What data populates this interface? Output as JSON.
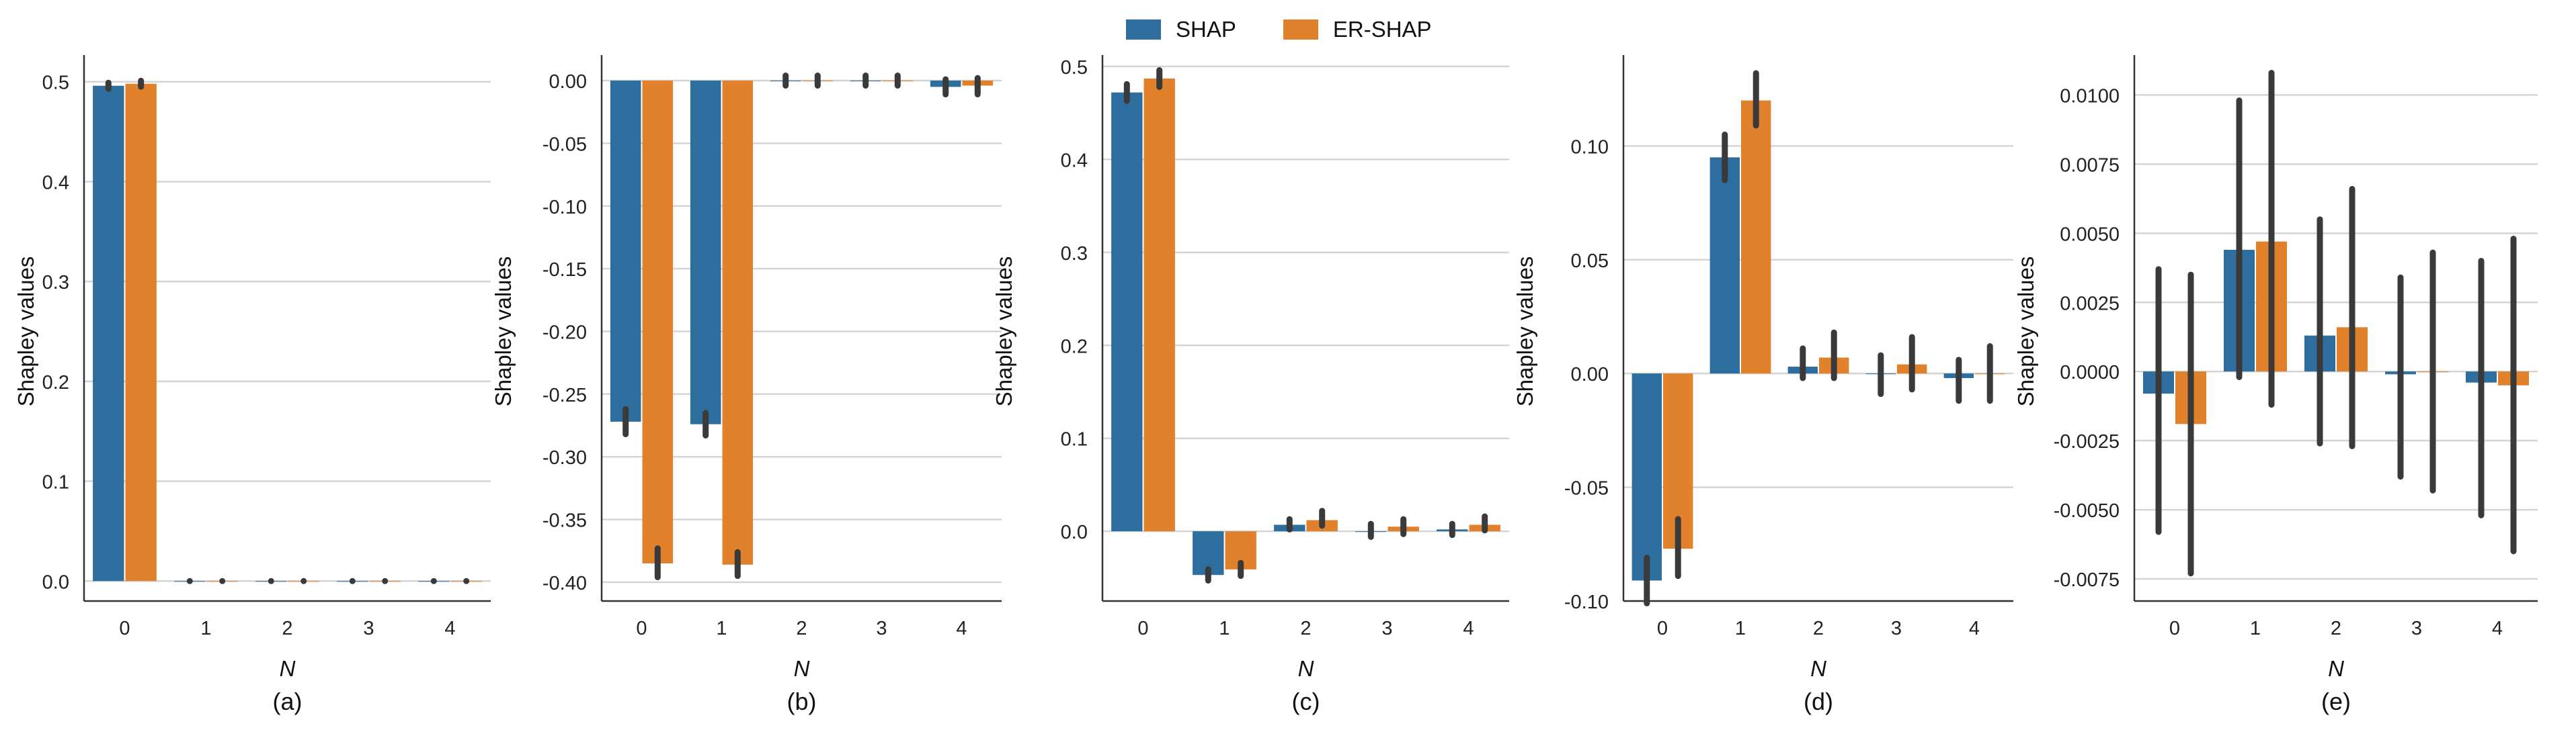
{
  "legend": [
    {
      "name": "SHAP",
      "color": "#2e6e9e"
    },
    {
      "name": "ER-SHAP",
      "color": "#e1812c"
    }
  ],
  "chart_data": [
    {
      "type": "bar",
      "caption": "(a)",
      "xlabel": "N",
      "ylabel": "Shapley values",
      "categories": [
        "0",
        "1",
        "2",
        "3",
        "4"
      ],
      "ylim": [
        -0.02,
        0.52
      ],
      "yticks": [
        "0.0",
        "0.1",
        "0.2",
        "0.3",
        "0.4",
        "0.5"
      ],
      "ytick_values": [
        0.0,
        0.1,
        0.2,
        0.3,
        0.4,
        0.5
      ],
      "grid": true,
      "series": [
        {
          "name": "SHAP",
          "values": [
            0.496,
            0.0,
            0.0,
            0.0,
            0.0
          ],
          "err_low": [
            0.493,
            0.0,
            0.0,
            0.0,
            0.0
          ],
          "err_high": [
            0.499,
            0.0,
            0.0,
            0.0,
            0.0
          ]
        },
        {
          "name": "ER-SHAP",
          "values": [
            0.498,
            0.0,
            0.0,
            0.0,
            0.0
          ],
          "err_low": [
            0.495,
            0.0,
            0.0,
            0.0,
            0.0
          ],
          "err_high": [
            0.501,
            0.0,
            0.0,
            0.0,
            0.0
          ]
        }
      ]
    },
    {
      "type": "bar",
      "caption": "(b)",
      "xlabel": "N",
      "ylabel": "Shapley values",
      "categories": [
        "0",
        "1",
        "2",
        "3",
        "4"
      ],
      "ylim": [
        -0.415,
        0.015
      ],
      "yticks": [
        "0.00",
        "-0.05",
        "-0.10",
        "-0.15",
        "-0.20",
        "-0.25",
        "-0.30",
        "-0.35",
        "-0.40"
      ],
      "ytick_values": [
        0.0,
        -0.05,
        -0.1,
        -0.15,
        -0.2,
        -0.25,
        -0.3,
        -0.35,
        -0.4
      ],
      "grid": true,
      "series": [
        {
          "name": "SHAP",
          "values": [
            -0.272,
            -0.274,
            0.0,
            0.0,
            -0.005
          ],
          "err_low": [
            -0.282,
            -0.283,
            -0.004,
            -0.004,
            -0.011
          ],
          "err_high": [
            -0.262,
            -0.265,
            0.004,
            0.004,
            0.001
          ]
        },
        {
          "name": "ER-SHAP",
          "values": [
            -0.385,
            -0.386,
            0.0,
            0.0,
            -0.004
          ],
          "err_low": [
            -0.396,
            -0.395,
            -0.004,
            -0.004,
            -0.011
          ],
          "err_high": [
            -0.373,
            -0.376,
            0.004,
            0.004,
            0.002
          ]
        }
      ]
    },
    {
      "type": "bar",
      "caption": "(c)",
      "xlabel": "N",
      "ylabel": "Shapley values",
      "categories": [
        "0",
        "1",
        "2",
        "3",
        "4"
      ],
      "ylim": [
        -0.075,
        0.505
      ],
      "yticks": [
        "0.0",
        "0.1",
        "0.2",
        "0.3",
        "0.4",
        "0.5"
      ],
      "ytick_values": [
        0.0,
        0.1,
        0.2,
        0.3,
        0.4,
        0.5
      ],
      "grid": true,
      "series": [
        {
          "name": "SHAP",
          "values": [
            0.472,
            -0.047,
            0.007,
            0.0,
            0.002
          ],
          "err_low": [
            0.463,
            -0.053,
            0.002,
            -0.006,
            -0.004
          ],
          "err_high": [
            0.481,
            -0.041,
            0.013,
            0.008,
            0.008
          ]
        },
        {
          "name": "ER-SHAP",
          "values": [
            0.487,
            -0.041,
            0.012,
            0.005,
            0.007
          ],
          "err_low": [
            0.478,
            -0.048,
            0.006,
            -0.003,
            0.001
          ],
          "err_high": [
            0.496,
            -0.034,
            0.022,
            0.013,
            0.016
          ]
        }
      ]
    },
    {
      "type": "bar",
      "caption": "(d)",
      "xlabel": "N",
      "ylabel": "Shapley values",
      "categories": [
        "0",
        "1",
        "2",
        "3",
        "4"
      ],
      "ylim": [
        -0.1,
        0.137
      ],
      "yticks": [
        "0.10",
        "0.05",
        "0.00",
        "-0.05",
        "-0.10"
      ],
      "ytick_values": [
        0.1,
        0.05,
        0.0,
        -0.05,
        -0.1
      ],
      "grid": true,
      "series": [
        {
          "name": "SHAP",
          "values": [
            -0.091,
            0.095,
            0.003,
            0.0,
            -0.002
          ],
          "err_low": [
            -0.101,
            0.085,
            -0.002,
            -0.009,
            -0.012
          ],
          "err_high": [
            -0.081,
            0.105,
            0.011,
            0.008,
            0.006
          ]
        },
        {
          "name": "ER-SHAP",
          "values": [
            -0.077,
            0.12,
            0.007,
            0.004,
            0.0
          ],
          "err_low": [
            -0.089,
            0.109,
            -0.002,
            -0.007,
            -0.012
          ],
          "err_high": [
            -0.064,
            0.132,
            0.018,
            0.016,
            0.012
          ]
        }
      ]
    },
    {
      "type": "bar",
      "caption": "(e)",
      "xlabel": "N",
      "ylabel": "Shapley values",
      "categories": [
        "0",
        "1",
        "2",
        "3",
        "4"
      ],
      "ylim": [
        -0.0083,
        0.0112
      ],
      "yticks": [
        "0.0100",
        "0.0075",
        "0.0050",
        "0.0025",
        "0.0000",
        "-0.0025",
        "-0.0050",
        "-0.0075"
      ],
      "ytick_values": [
        0.01,
        0.0075,
        0.005,
        0.0025,
        0.0,
        -0.0025,
        -0.005,
        -0.0075
      ],
      "grid": true,
      "series": [
        {
          "name": "SHAP",
          "values": [
            -0.0008,
            0.0044,
            0.0013,
            -0.0001,
            -0.0004
          ],
          "err_low": [
            -0.0058,
            -0.0002,
            -0.0026,
            -0.0038,
            -0.0052
          ],
          "err_high": [
            0.0037,
            0.0098,
            0.0055,
            0.0034,
            0.004
          ]
        },
        {
          "name": "ER-SHAP",
          "values": [
            -0.0019,
            0.0047,
            0.0016,
            0.0,
            -0.0005
          ],
          "err_low": [
            -0.0073,
            -0.0012,
            -0.0027,
            -0.0043,
            -0.0065
          ],
          "err_high": [
            0.0035,
            0.0108,
            0.0066,
            0.0043,
            0.0048
          ]
        }
      ]
    }
  ]
}
